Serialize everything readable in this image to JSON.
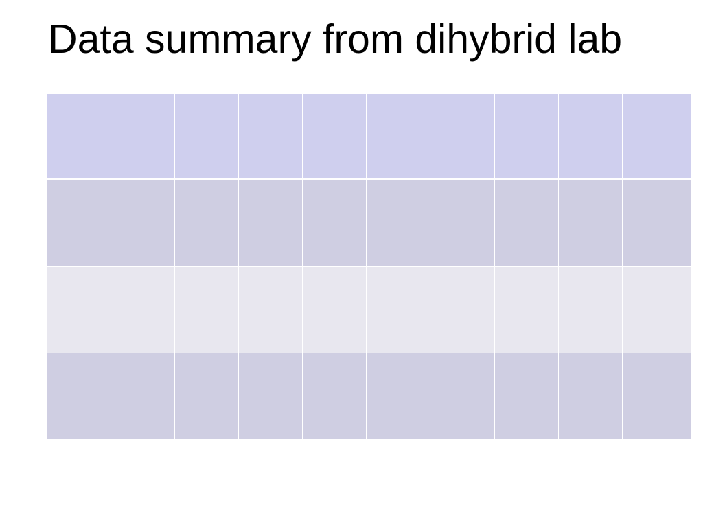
{
  "title": "Data summary from dihybrid lab"
}
